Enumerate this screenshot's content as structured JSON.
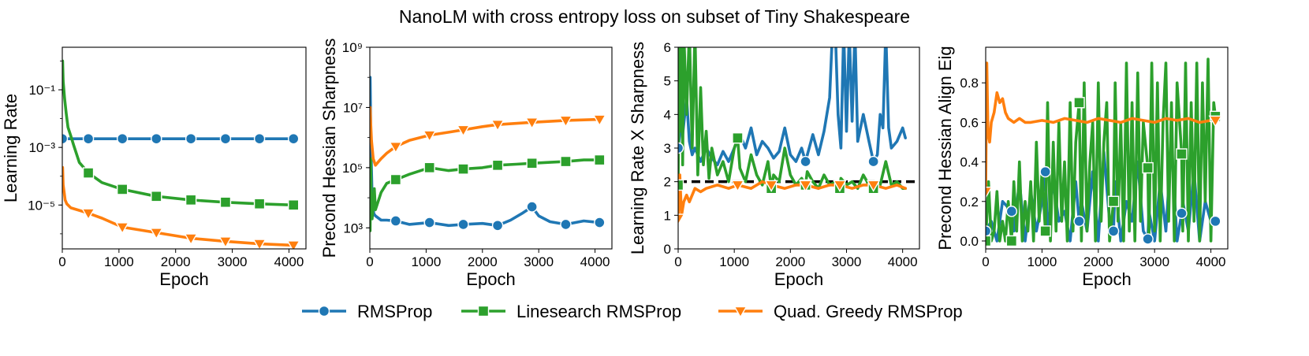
{
  "title": "NanoLM with cross entropy loss on subset of Tiny Shakespeare",
  "colors": {
    "RMSProp": "#1f77b4",
    "Linesearch RMSProp": "#2ca02c",
    "Quad. Greedy RMSProp": "#ff7f0e",
    "reference": "#000000"
  },
  "legend": {
    "items": [
      {
        "label": "RMSProp",
        "marker": "circle",
        "color": "#1f77b4"
      },
      {
        "label": "Linesearch RMSProp",
        "marker": "square",
        "color": "#2ca02c"
      },
      {
        "label": "Quad. Greedy RMSProp",
        "marker": "triangle-down",
        "color": "#ff7f0e"
      }
    ]
  },
  "chart_data": [
    {
      "type": "line",
      "title": "",
      "xlabel": "Epoch",
      "ylabel": "Learning Rate",
      "yscale": "log",
      "xlim": [
        0,
        4300
      ],
      "ylim": [
        3e-07,
        3
      ],
      "xticks": [
        0,
        1000,
        2000,
        3000,
        4000
      ],
      "xtick_labels": [
        "0",
        "1000",
        "2000",
        "3000",
        "4000"
      ],
      "yticks": [
        0.1,
        0.001,
        1e-05
      ],
      "ytick_labels": [
        "10⁻¹",
        "10⁻³",
        "10⁻⁵"
      ],
      "series": [
        {
          "name": "RMSProp",
          "marker": "circle",
          "x": [
            0,
            20,
            460,
            1060,
            1660,
            2270,
            2880,
            3480,
            4080
          ],
          "y": [
            0.002,
            0.002,
            0.002,
            0.002,
            0.002,
            0.002,
            0.002,
            0.002,
            0.002
          ]
        },
        {
          "name": "Linesearch RMSProp",
          "marker": "square",
          "x": [
            5,
            15,
            40,
            70,
            100,
            150,
            200,
            300,
            460,
            700,
            1060,
            1660,
            2270,
            2880,
            3480,
            4080
          ],
          "y": [
            1.0,
            0.2,
            0.05,
            0.015,
            0.005,
            0.0025,
            0.0012,
            0.0003,
            0.00013,
            6e-05,
            3.5e-05,
            2e-05,
            1.5e-05,
            1.25e-05,
            1.1e-05,
            1e-05
          ]
        },
        {
          "name": "Quad. Greedy RMSProp",
          "marker": "triangle-down",
          "x": [
            5,
            15,
            30,
            50,
            80,
            150,
            300,
            460,
            700,
            1060,
            1660,
            2270,
            2880,
            3480,
            4080
          ],
          "y": [
            0.0002,
            5e-05,
            3e-05,
            1.5e-05,
            1.1e-05,
            8e-06,
            6.5e-06,
            5.2e-06,
            3.5e-06,
            1.7e-06,
            1.1e-06,
            7e-07,
            5.5e-07,
            4.5e-07,
            4e-07
          ]
        }
      ]
    },
    {
      "type": "line",
      "title": "",
      "xlabel": "Epoch",
      "ylabel": "Precond Hessian Sharpness",
      "yscale": "log",
      "xlim": [
        0,
        4300
      ],
      "ylim": [
        200,
        1000000000.0
      ],
      "xticks": [
        0,
        1000,
        2000,
        3000,
        4000
      ],
      "xtick_labels": [
        "0",
        "1000",
        "2000",
        "3000",
        "4000"
      ],
      "yticks": [
        1000000000,
        10000000,
        100000,
        1000
      ],
      "ytick_labels": [
        "10⁹",
        "10⁷",
        "10⁵",
        "10³"
      ],
      "series": [
        {
          "name": "RMSProp",
          "marker": "circle",
          "x": [
            5,
            20,
            40,
            70,
            100,
            200,
            300,
            460,
            700,
            1060,
            1400,
            1660,
            2000,
            2270,
            2500,
            2700,
            2880,
            3000,
            3200,
            3480,
            3800,
            4080
          ],
          "y": [
            100000000,
            500000,
            10000,
            3000,
            2500,
            1800,
            1800,
            1700,
            1300,
            1500,
            1200,
            1300,
            1400,
            1200,
            1800,
            3000,
            5000,
            2500,
            1600,
            1300,
            1700,
            1500
          ]
        },
        {
          "name": "Linesearch RMSProp",
          "marker": "square",
          "x": [
            5,
            15,
            25,
            40,
            60,
            80,
            100,
            200,
            300,
            460,
            700,
            1060,
            1400,
            1660,
            2000,
            2270,
            2600,
            2880,
            3200,
            3480,
            3800,
            4080
          ],
          "y": [
            800,
            200000,
            10000,
            2000,
            5000,
            20000,
            4000,
            15000,
            30000,
            40000,
            60000,
            100000,
            80000,
            90000,
            100000,
            120000,
            130000,
            140000,
            150000,
            160000,
            180000,
            180000
          ]
        },
        {
          "name": "Quad. Greedy RMSProp",
          "marker": "triangle-down",
          "x": [
            5,
            15,
            30,
            60,
            100,
            200,
            300,
            460,
            700,
            1060,
            1400,
            1660,
            2000,
            2270,
            2880,
            3480,
            4080
          ],
          "y": [
            10000000,
            3000000,
            800000,
            200000,
            120000,
            200000,
            300000,
            500000,
            800000,
            1200000,
            1500000,
            1800000,
            2300000,
            2700000,
            3200000,
            3700000,
            4000000
          ]
        }
      ]
    },
    {
      "type": "line",
      "title": "",
      "xlabel": "Epoch",
      "ylabel": "Learning Rate X Sharpness",
      "yscale": "linear",
      "xlim": [
        0,
        4300
      ],
      "ylim": [
        0,
        6
      ],
      "xticks": [
        0,
        1000,
        2000,
        3000,
        4000
      ],
      "xtick_labels": [
        "0",
        "1000",
        "2000",
        "3000",
        "4000"
      ],
      "yticks": [
        0,
        1,
        2,
        3,
        4,
        5,
        6
      ],
      "ytick_labels": [
        "0",
        "1",
        "2",
        "3",
        "4",
        "5",
        "6"
      ],
      "reference_line": {
        "y": 2.0,
        "style": "dashed"
      },
      "series": [
        {
          "name": "RMSProp",
          "marker": "circle",
          "x": [
            0,
            40,
            80,
            150,
            200,
            250,
            300,
            400,
            500,
            600,
            700,
            800,
            900,
            1000,
            1100,
            1200,
            1300,
            1400,
            1500,
            1600,
            1700,
            1800,
            1900,
            2000,
            2100,
            2200,
            2270,
            2400,
            2500,
            2600,
            2700,
            2750,
            2800,
            2850,
            2900,
            2950,
            3000,
            3050,
            3100,
            3150,
            3200,
            3300,
            3400,
            3480,
            3550,
            3600,
            3650,
            3700,
            3750,
            3800,
            3900,
            4000,
            4050
          ],
          "y": [
            3.0,
            3.6,
            3.4,
            4.5,
            3.2,
            2.8,
            3.0,
            2.6,
            3.0,
            2.7,
            2.5,
            2.9,
            2.6,
            3.0,
            3.4,
            3.0,
            3.6,
            2.8,
            3.2,
            3.0,
            2.7,
            2.9,
            3.6,
            2.8,
            2.6,
            3.0,
            2.6,
            3.4,
            2.8,
            3.5,
            4.5,
            6.5,
            6.5,
            4.0,
            3.0,
            6.5,
            3.5,
            6.5,
            3.8,
            6.5,
            3.2,
            4.0,
            3.2,
            2.6,
            2.8,
            4.0,
            3.6,
            6.5,
            3.6,
            3.0,
            3.2,
            3.6,
            3.3
          ]
        },
        {
          "name": "Linesearch RMSProp",
          "marker": "square",
          "x": [
            0,
            20,
            40,
            60,
            80,
            100,
            150,
            200,
            250,
            300,
            350,
            400,
            450,
            500,
            550,
            600,
            700,
            800,
            900,
            1000,
            1060,
            1100,
            1200,
            1300,
            1400,
            1500,
            1600,
            1660,
            1700,
            1800,
            1900,
            2000,
            2100,
            2200,
            2270,
            2300,
            2400,
            2500,
            2600,
            2700,
            2800,
            2880,
            2900,
            3000,
            3100,
            3200,
            3300,
            3400,
            3480,
            3500,
            3600,
            3700,
            3800,
            3900,
            4000,
            4050
          ],
          "y": [
            1.9,
            6.5,
            3.5,
            6.5,
            2.5,
            6.5,
            4.0,
            6.5,
            3.0,
            6.5,
            2.2,
            4.8,
            2.5,
            3.5,
            2.1,
            3.0,
            2.2,
            2.6,
            2.0,
            3.0,
            3.3,
            2.4,
            2.0,
            2.8,
            2.2,
            1.9,
            2.6,
            1.8,
            2.2,
            2.0,
            3.0,
            2.2,
            1.9,
            2.1,
            1.9,
            2.3,
            2.0,
            1.8,
            2.2,
            1.9,
            2.0,
            1.8,
            2.1,
            1.9,
            2.0,
            1.8,
            2.2,
            1.9,
            1.8,
            2.0,
            1.9,
            2.6,
            1.9,
            2.0,
            1.8,
            1.8
          ]
        },
        {
          "name": "Quad. Greedy RMSProp",
          "marker": "triangle-down",
          "x": [
            0,
            30,
            60,
            100,
            150,
            200,
            300,
            400,
            500,
            700,
            900,
            1060,
            1300,
            1500,
            1660,
            1900,
            2100,
            2270,
            2500,
            2700,
            2880,
            3100,
            3300,
            3480,
            3700,
            3900,
            4050
          ],
          "y": [
            0.9,
            2.2,
            1.0,
            1.4,
            1.6,
            1.4,
            1.8,
            1.7,
            1.8,
            1.9,
            1.8,
            1.9,
            1.8,
            2.0,
            1.9,
            1.8,
            1.9,
            1.9,
            1.8,
            1.9,
            1.9,
            1.8,
            1.9,
            1.9,
            1.8,
            1.9,
            1.8
          ]
        }
      ]
    },
    {
      "type": "line",
      "title": "",
      "xlabel": "Epoch",
      "ylabel": "Precond Hessian Align Eig",
      "yscale": "linear",
      "xlim": [
        0,
        4300
      ],
      "ylim": [
        -0.04,
        0.98
      ],
      "xticks": [
        0,
        1000,
        2000,
        3000,
        4000
      ],
      "xtick_labels": [
        "0",
        "1000",
        "2000",
        "3000",
        "4000"
      ],
      "yticks": [
        0.0,
        0.2,
        0.4,
        0.6,
        0.8
      ],
      "ytick_labels": [
        "0.0",
        "0.2",
        "0.4",
        "0.6",
        "0.8"
      ],
      "series": [
        {
          "name": "RMSProp",
          "marker": "circle",
          "x": [
            0,
            100,
            200,
            300,
            460,
            500,
            600,
            700,
            800,
            900,
            1000,
            1060,
            1100,
            1200,
            1300,
            1400,
            1500,
            1600,
            1660,
            1700,
            1800,
            1900,
            2000,
            2100,
            2200,
            2270,
            2300,
            2400,
            2500,
            2600,
            2700,
            2800,
            2880,
            2900,
            3000,
            3100,
            3200,
            3300,
            3400,
            3480,
            3500,
            3600,
            3700,
            3800,
            3900,
            4000,
            4080
          ],
          "y": [
            0.05,
            0.1,
            0.0,
            0.2,
            0.15,
            0.05,
            0.3,
            0.0,
            0.25,
            0.05,
            0.2,
            0.35,
            0.05,
            0.3,
            0.1,
            0.15,
            0.0,
            0.3,
            0.1,
            0.2,
            0.05,
            0.35,
            0.0,
            0.45,
            0.1,
            0.05,
            0.3,
            0.0,
            0.2,
            0.1,
            0.4,
            0.05,
            0.01,
            0.15,
            0.0,
            0.3,
            0.05,
            0.5,
            0.0,
            0.14,
            0.2,
            0.05,
            0.35,
            0.0,
            0.2,
            0.1,
            0.1
          ]
        },
        {
          "name": "Linesearch RMSProp",
          "marker": "square",
          "x": [
            0,
            50,
            100,
            150,
            200,
            250,
            300,
            350,
            400,
            460,
            500,
            550,
            600,
            650,
            700,
            750,
            800,
            850,
            900,
            950,
            1000,
            1060,
            1100,
            1150,
            1200,
            1250,
            1300,
            1350,
            1400,
            1450,
            1500,
            1550,
            1600,
            1660,
            1700,
            1750,
            1800,
            1850,
            1900,
            1950,
            2000,
            2050,
            2100,
            2150,
            2200,
            2270,
            2300,
            2350,
            2400,
            2450,
            2500,
            2550,
            2600,
            2650,
            2700,
            2750,
            2800,
            2880,
            2900,
            2950,
            3000,
            3050,
            3100,
            3150,
            3200,
            3250,
            3300,
            3350,
            3400,
            3480,
            3500,
            3550,
            3600,
            3650,
            3700,
            3750,
            3800,
            3850,
            3900,
            3950,
            4000,
            4050,
            4080
          ],
          "y": [
            0.0,
            0.3,
            0.0,
            0.05,
            0.25,
            0.0,
            0.1,
            0.0,
            0.2,
            0.0,
            0.3,
            0.05,
            0.4,
            0.0,
            0.2,
            0.05,
            0.3,
            0.0,
            0.5,
            0.1,
            0.35,
            0.05,
            0.7,
            0.0,
            0.5,
            0.05,
            0.6,
            0.1,
            0.4,
            0.0,
            0.7,
            0.05,
            0.5,
            0.7,
            0.0,
            0.8,
            0.05,
            0.4,
            0.6,
            0.0,
            0.8,
            0.1,
            0.5,
            0.7,
            0.0,
            0.2,
            0.8,
            0.1,
            0.6,
            0.0,
            0.9,
            0.05,
            0.7,
            0.0,
            0.85,
            0.1,
            0.6,
            0.37,
            0.0,
            0.9,
            0.05,
            0.8,
            0.0,
            0.6,
            0.9,
            0.1,
            0.7,
            0.0,
            0.8,
            0.44,
            0.05,
            0.9,
            0.0,
            0.7,
            0.1,
            0.9,
            0.0,
            0.8,
            0.2,
            0.92,
            0.0,
            0.7,
            0.63
          ]
        },
        {
          "name": "Quad. Greedy RMSProp",
          "marker": "triangle-down",
          "x": [
            0,
            20,
            40,
            70,
            100,
            150,
            200,
            250,
            300,
            350,
            400,
            500,
            600,
            700,
            800,
            1000,
            1200,
            1400,
            1600,
            1800,
            2000,
            2200,
            2400,
            2600,
            2800,
            3000,
            3200,
            3400,
            3600,
            3800,
            4000,
            4080
          ],
          "y": [
            0.25,
            0.9,
            0.55,
            0.5,
            0.6,
            0.65,
            0.75,
            0.7,
            0.72,
            0.65,
            0.62,
            0.6,
            0.62,
            0.6,
            0.6,
            0.61,
            0.6,
            0.62,
            0.61,
            0.6,
            0.62,
            0.61,
            0.6,
            0.62,
            0.61,
            0.6,
            0.62,
            0.61,
            0.62,
            0.6,
            0.61,
            0.61
          ]
        }
      ]
    }
  ]
}
